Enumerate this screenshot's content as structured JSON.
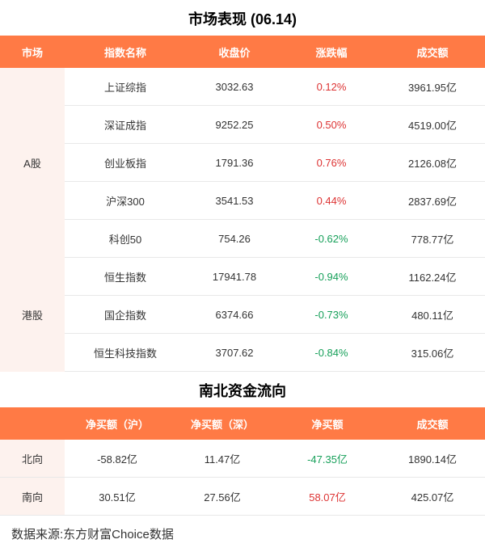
{
  "market_table": {
    "title": "市场表现 (06.14)",
    "columns": [
      "市场",
      "指数名称",
      "收盘价",
      "涨跌幅",
      "成交额"
    ],
    "groups": [
      {
        "market": "A股",
        "rows": [
          {
            "name": "上证综指",
            "close": "3032.63",
            "chg": "0.12%",
            "chg_dir": "up",
            "vol": "3961.95亿"
          },
          {
            "name": "深证成指",
            "close": "9252.25",
            "chg": "0.50%",
            "chg_dir": "up",
            "vol": "4519.00亿"
          },
          {
            "name": "创业板指",
            "close": "1791.36",
            "chg": "0.76%",
            "chg_dir": "up",
            "vol": "2126.08亿"
          },
          {
            "name": "沪深300",
            "close": "3541.53",
            "chg": "0.44%",
            "chg_dir": "up",
            "vol": "2837.69亿"
          },
          {
            "name": "科创50",
            "close": "754.26",
            "chg": "-0.62%",
            "chg_dir": "down",
            "vol": "778.77亿"
          }
        ]
      },
      {
        "market": "港股",
        "rows": [
          {
            "name": "恒生指数",
            "close": "17941.78",
            "chg": "-0.94%",
            "chg_dir": "down",
            "vol": "1162.24亿"
          },
          {
            "name": "国企指数",
            "close": "6374.66",
            "chg": "-0.73%",
            "chg_dir": "down",
            "vol": "480.11亿"
          },
          {
            "name": "恒生科技指数",
            "close": "3707.62",
            "chg": "-0.84%",
            "chg_dir": "down",
            "vol": "315.06亿"
          }
        ]
      }
    ]
  },
  "flow_table": {
    "title": "南北资金流向",
    "columns": [
      "",
      "净买额（沪）",
      "净买额（深）",
      "净买额",
      "成交额"
    ],
    "rows": [
      {
        "label": "北向",
        "hu": "-58.82亿",
        "shen": "11.47亿",
        "net": "-47.35亿",
        "net_dir": "down",
        "vol": "1890.14亿"
      },
      {
        "label": "南向",
        "hu": "30.51亿",
        "shen": "27.56亿",
        "net": "58.07亿",
        "net_dir": "up",
        "vol": "425.07亿"
      }
    ]
  },
  "source": "数据来源:东方财富Choice数据",
  "colors": {
    "header_bg": "#ff7a45",
    "group_bg": "#fdf2ee",
    "up": "#d33",
    "down": "#17a05a",
    "border": "#e8e8e8"
  }
}
